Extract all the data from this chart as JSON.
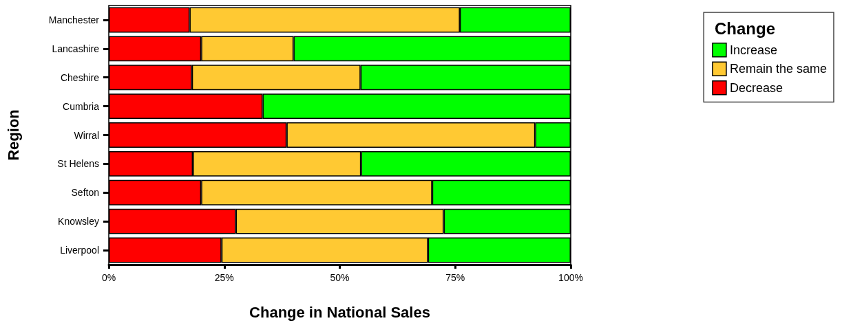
{
  "chart_data": {
    "type": "bar",
    "orientation": "horizontal",
    "stacked": true,
    "xlabel": "Change in National Sales",
    "ylabel": "Region",
    "legend_title": "Change",
    "legend": "top right",
    "grid": false,
    "categories": [
      "Manchester",
      "Lancashire",
      "Cheshire",
      "Cumbria",
      "Wirral",
      "St Helens",
      "Sefton",
      "Knowsley",
      "Liverpool"
    ],
    "xlim": [
      0,
      100
    ],
    "xticks": [
      {
        "value": 0,
        "label": "0%"
      },
      {
        "value": 25,
        "label": "25%"
      },
      {
        "value": 50,
        "label": "50%"
      },
      {
        "value": 75,
        "label": "75%"
      },
      {
        "value": 100,
        "label": "100%"
      }
    ],
    "series": [
      {
        "name": "Decrease",
        "color": "#ff0000",
        "values": [
          17.5,
          20,
          18,
          33.3,
          38.5,
          18.2,
          20,
          27.5,
          24.4
        ]
      },
      {
        "name": "Remain the same",
        "color": "#ffc933",
        "values": [
          58.5,
          20,
          36.5,
          0,
          53.8,
          36.4,
          50,
          45,
          44.7
        ]
      },
      {
        "name": "Increase",
        "color": "#00ff00",
        "values": [
          24,
          60,
          45.5,
          66.7,
          7.7,
          45.4,
          30,
          27.5,
          30.9
        ]
      }
    ]
  }
}
